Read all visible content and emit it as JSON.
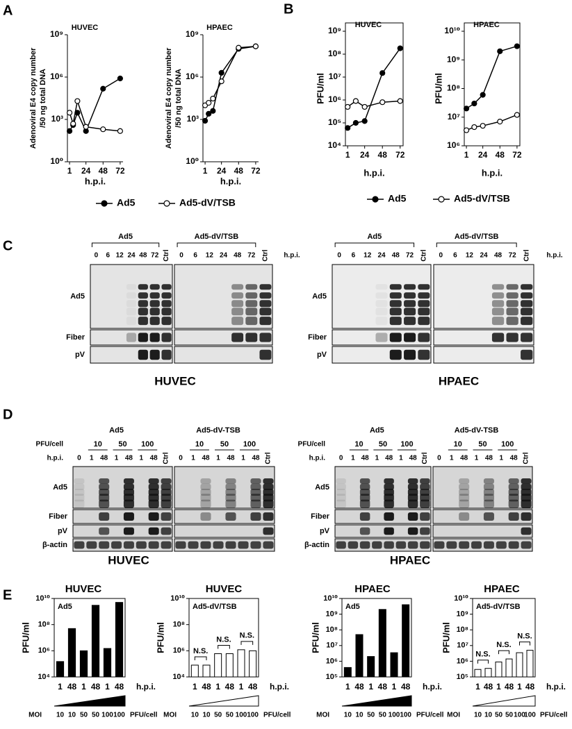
{
  "panels": [
    "A",
    "B",
    "C",
    "D",
    "E"
  ],
  "chart_data": [
    {
      "type": "line",
      "title": "HUVEC",
      "ylabel": [
        "Adenoviral E4 copy number",
        "/50 ng total DNA"
      ],
      "xlabel": "h.p.i.",
      "log_y": true,
      "xlim": [
        -2,
        76
      ],
      "xticks": [
        1,
        24,
        48,
        72
      ],
      "ylim": [
        1,
        1000000000
      ],
      "yticks": [
        {
          "value": 1,
          "label": "10⁰"
        },
        {
          "value": 1000,
          "label": "10³"
        },
        {
          "value": 1000000,
          "label": "10⁶"
        },
        {
          "value": 1000000000,
          "label": "10⁹"
        }
      ],
      "x": [
        1,
        6,
        12,
        24,
        48,
        72
      ],
      "series": [
        {
          "name": "Ad5",
          "color": "#000000",
          "fill": "#000000",
          "values": [
            150,
            400,
            3000,
            150,
            150000,
            800000
          ]
        },
        {
          "name": "Ad5-dV/TSB",
          "color": "#000000",
          "fill": "#ffffff",
          "values": [
            3000,
            500,
            20000,
            300,
            200,
            150
          ]
        }
      ],
      "legend": "bottom"
    },
    {
      "type": "line",
      "title": "HPAEC",
      "ylabel": [
        "Adenoviral E4 copy number",
        "/50 ng total DNA"
      ],
      "xlabel": "h.p.i.",
      "log_y": true,
      "xlim": [
        -2,
        76
      ],
      "xticks": [
        1,
        24,
        48,
        72
      ],
      "ylim": [
        1,
        1000000000
      ],
      "yticks": [
        {
          "value": 1,
          "label": "10⁰"
        },
        {
          "value": 1000,
          "label": "10³"
        },
        {
          "value": 1000000,
          "label": "10⁶"
        },
        {
          "value": 1000000000,
          "label": "10⁹"
        }
      ],
      "x": [
        1,
        6,
        12,
        24,
        48,
        72
      ],
      "series": [
        {
          "color": "#000000",
          "fill": "#000000",
          "values": [
            800,
            2500,
            4000,
            2000000,
            100000000,
            150000000
          ]
        },
        {
          "color": "#000000",
          "fill": "#ffffff",
          "values": [
            10000,
            15000,
            30000,
            500000,
            120000000,
            150000000
          ]
        }
      ]
    },
    {
      "type": "line",
      "title": "HUVEC",
      "ylabel": "PFU/ml",
      "xlabel": "h.p.i.",
      "log_y": true,
      "box": true,
      "xlim": [
        -2,
        76
      ],
      "xticks": [
        1,
        24,
        48,
        72
      ],
      "ylim": [
        10000,
        1000000000
      ],
      "yticks": [
        {
          "value": 10000,
          "label": "10⁴"
        },
        {
          "value": 100000,
          "label": "10⁵"
        },
        {
          "value": 1000000,
          "label": "10⁶"
        },
        {
          "value": 10000000,
          "label": "10⁷"
        },
        {
          "value": 100000000,
          "label": "10⁸"
        },
        {
          "value": 1000000000,
          "label": "10⁹"
        }
      ],
      "x": [
        1,
        12,
        24,
        48,
        72
      ],
      "series": [
        {
          "name": "Ad5",
          "color": "#000000",
          "fill": "#000000",
          "values": [
            60000,
            100000,
            120000,
            15000000,
            180000000
          ]
        },
        {
          "name": "Ad5-dV/TSB",
          "color": "#000000",
          "fill": "#ffffff",
          "values": [
            500000,
            900000,
            500000,
            800000,
            900000
          ]
        }
      ],
      "legend": "bottom"
    },
    {
      "type": "line",
      "title": "HPAEC",
      "ylabel": "PFU/ml",
      "xlabel": "h.p.i.",
      "log_y": true,
      "box": true,
      "xlim": [
        -2,
        76
      ],
      "xticks": [
        1,
        24,
        48,
        72
      ],
      "ylim": [
        1000000,
        10000000000
      ],
      "yticks": [
        {
          "value": 1000000,
          "label": "10⁶"
        },
        {
          "value": 10000000,
          "label": "10⁷"
        },
        {
          "value": 100000000,
          "label": "10⁸"
        },
        {
          "value": 1000000000,
          "label": "10⁹"
        },
        {
          "value": 10000000000,
          "label": "10¹⁰"
        }
      ],
      "x": [
        1,
        12,
        24,
        48,
        72
      ],
      "series": [
        {
          "color": "#000000",
          "fill": "#000000",
          "values": [
            20000000,
            30000000,
            60000000,
            2000000000,
            3000000000
          ]
        },
        {
          "color": "#000000",
          "fill": "#ffffff",
          "values": [
            3500000,
            4500000,
            5000000,
            7000000,
            12000000
          ]
        }
      ]
    },
    {
      "type": "bar",
      "title": "HUVEC",
      "inner_label": "Ad5",
      "ylabel": "PFU/ml",
      "xlabel": "h.p.i.",
      "log_y": true,
      "color": "#000000",
      "categories": [
        "1",
        "48",
        "1",
        "48",
        "1",
        "48"
      ],
      "values": [
        150000,
        50000000,
        1000000,
        3000000000,
        1500000,
        5000000000
      ],
      "moi_label": "MOI",
      "moi": [
        "10",
        "10",
        "50",
        "50",
        "100",
        "100"
      ],
      "moi_unit": "PFU/cell",
      "ylim": [
        10000,
        10000000000
      ],
      "yticks": [
        {
          "value": 10000,
          "label": "10⁴"
        },
        {
          "value": 1000000,
          "label": "10⁶"
        },
        {
          "value": 100000000,
          "label": "10⁸"
        },
        {
          "value": 10000000000,
          "label": "10¹⁰"
        }
      ]
    },
    {
      "type": "bar",
      "title": "HUVEC",
      "inner_label": "Ad5-dV/TSB",
      "ylabel": "PFU/ml",
      "xlabel": "h.p.i.",
      "log_y": true,
      "color": "#ffffff",
      "categories": [
        "1",
        "48",
        "1",
        "48",
        "1",
        "48"
      ],
      "values": [
        80000,
        80000,
        600000,
        600000,
        1200000,
        1000000
      ],
      "annotations": [
        "N.S.",
        "N.S.",
        "N.S."
      ],
      "moi_label": "MOI",
      "moi": [
        "10",
        "10",
        "50",
        "50",
        "100",
        "100"
      ],
      "moi_unit": "PFU/cell",
      "ylim": [
        10000,
        10000000000
      ],
      "yticks": [
        {
          "value": 10000,
          "label": "10⁴"
        },
        {
          "value": 1000000,
          "label": "10⁶"
        },
        {
          "value": 100000000,
          "label": "10⁸"
        },
        {
          "value": 10000000000,
          "label": "10¹⁰"
        }
      ]
    },
    {
      "type": "bar",
      "title": "HPAEC",
      "inner_label": "Ad5",
      "ylabel": "PFU/ml",
      "xlabel": "h.p.i.",
      "log_y": true,
      "color": "#000000",
      "categories": [
        "1",
        "48",
        "1",
        "48",
        "1",
        "48"
      ],
      "values": [
        400000,
        50000000,
        2000000,
        2000000000,
        3500000,
        4000000000
      ],
      "moi_label": "MOI",
      "moi": [
        "10",
        "10",
        "50",
        "50",
        "100",
        "100"
      ],
      "moi_unit": "PFU/cell",
      "ylim": [
        100000,
        10000000000
      ],
      "yticks": [
        {
          "value": 100000,
          "label": "10⁵"
        },
        {
          "value": 1000000,
          "label": "10⁶"
        },
        {
          "value": 10000000,
          "label": "10⁷"
        },
        {
          "value": 100000000,
          "label": "10⁸"
        },
        {
          "value": 1000000000,
          "label": "10⁹"
        },
        {
          "value": 10000000000,
          "label": "10¹⁰"
        }
      ]
    },
    {
      "type": "bar",
      "title": "HPAEC",
      "inner_label": "Ad5-dV/TSB",
      "ylabel": "PFU/ml",
      "xlabel": "h.p.i.",
      "log_y": true,
      "color": "#ffffff",
      "categories": [
        "1",
        "48",
        "1",
        "48",
        "1",
        "48"
      ],
      "values": [
        300000,
        350000,
        900000,
        1400000,
        3500000,
        5000000
      ],
      "annotations": [
        "N.S.",
        "N.S.",
        "N.S."
      ],
      "moi_label": "MOI",
      "moi": [
        "10",
        "10",
        "50",
        "50",
        "100",
        "100"
      ],
      "moi_unit": "PFU/cell",
      "ylim": [
        100000,
        10000000000
      ],
      "yticks": [
        {
          "value": 100000,
          "label": "10⁵"
        },
        {
          "value": 1000000,
          "label": "10⁶"
        },
        {
          "value": 10000000,
          "label": "10⁷"
        },
        {
          "value": 100000000,
          "label": "10⁸"
        },
        {
          "value": 1000000000,
          "label": "10⁹"
        },
        {
          "value": 10000000000,
          "label": "10¹⁰"
        }
      ]
    }
  ],
  "blots_c": [
    {
      "groups": [
        "Ad5",
        "Ad5-dV/TSB"
      ],
      "lanes": [
        "0",
        "6",
        "12",
        "24",
        "48",
        "72",
        "Ctrl"
      ],
      "time_label": "h.p.i.",
      "rows": [
        "Ad5",
        "Fiber",
        "pV"
      ],
      "cell": "HUVEC"
    },
    {
      "groups": [
        "Ad5",
        "Ad5-dV/TSB"
      ],
      "lanes": [
        "0",
        "6",
        "12",
        "24",
        "48",
        "72",
        "Ctrl"
      ],
      "time_label": "h.p.i.",
      "rows": [
        "Ad5",
        "Fiber",
        "pV"
      ],
      "cell": "HPAEC"
    }
  ],
  "blots_d": [
    {
      "groups": [
        "Ad5",
        "Ad5-dV-TSB"
      ],
      "dose_label": "PFU/cell",
      "doses": [
        "10",
        "50",
        "100"
      ],
      "time_label": "h.p.i.",
      "lanes": [
        "0",
        "1",
        "48",
        "1",
        "48",
        "1",
        "48",
        "Ctrl"
      ],
      "rows": [
        "Ad5",
        "Fiber",
        "pV",
        "β-actin"
      ],
      "cell": "HUVEC"
    },
    {
      "groups": [
        "Ad5",
        "Ad5-dV-TSB"
      ],
      "dose_label": "PFU/cell",
      "doses": [
        "10",
        "50",
        "100"
      ],
      "time_label": "h.p.i.",
      "lanes": [
        "0",
        "1",
        "48",
        "1",
        "48",
        "1",
        "48",
        "Ctrl"
      ],
      "rows": [
        "Ad5",
        "Fiber",
        "pV",
        "β-actin"
      ],
      "cell": "HPAEC"
    }
  ]
}
